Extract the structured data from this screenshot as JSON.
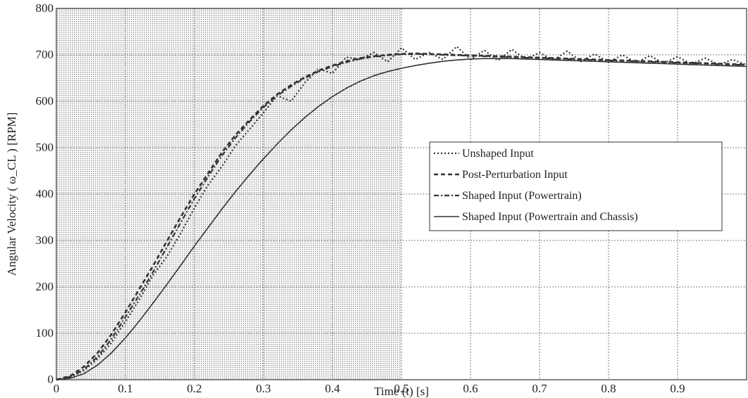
{
  "chart_data": {
    "type": "line",
    "xlabel": "Time (t) [s]",
    "ylabel": "Angular Velocity ( ω_CL ) [RPM]",
    "xlim": [
      0,
      1.0
    ],
    "ylim": [
      0,
      800
    ],
    "x_ticks": [
      "0",
      "0.1",
      "0.2",
      "0.3",
      "0.4",
      "0.5",
      "0.6",
      "0.7",
      "0.8",
      "0.9"
    ],
    "y_ticks": [
      "0",
      "100",
      "200",
      "300",
      "400",
      "500",
      "600",
      "700",
      "800"
    ],
    "grid": true,
    "shaded_region": [
      0,
      0.5
    ],
    "legend_position": "center-right",
    "series": [
      {
        "name": "Unshaped Input",
        "style": "dotted",
        "x": [
          0,
          0.02,
          0.04,
          0.06,
          0.08,
          0.1,
          0.12,
          0.14,
          0.16,
          0.18,
          0.2,
          0.22,
          0.24,
          0.26,
          0.28,
          0.3,
          0.32,
          0.34,
          0.36,
          0.38,
          0.4,
          0.42,
          0.44,
          0.46,
          0.48,
          0.5,
          0.52,
          0.54,
          0.56,
          0.58,
          0.6,
          0.62,
          0.64,
          0.66,
          0.68,
          0.7,
          0.72,
          0.74,
          0.76,
          0.78,
          0.8,
          0.82,
          0.84,
          0.86,
          0.88,
          0.9,
          0.92,
          0.94,
          0.96,
          0.98,
          1.0
        ],
        "values": [
          0,
          5,
          20,
          45,
          80,
          125,
          172,
          225,
          265,
          315,
          370,
          420,
          460,
          505,
          540,
          575,
          612,
          600,
          640,
          670,
          660,
          695,
          690,
          705,
          685,
          715,
          690,
          705,
          690,
          718,
          690,
          710,
          688,
          712,
          690,
          705,
          688,
          708,
          686,
          702,
          684,
          700,
          683,
          698,
          682,
          696,
          680,
          693,
          679,
          690,
          678
        ]
      },
      {
        "name": "Post-Perturbation Input",
        "style": "dashed",
        "x": [
          0,
          0.02,
          0.04,
          0.06,
          0.08,
          0.1,
          0.12,
          0.14,
          0.16,
          0.18,
          0.2,
          0.22,
          0.24,
          0.26,
          0.28,
          0.3,
          0.32,
          0.34,
          0.36,
          0.38,
          0.4,
          0.42,
          0.44,
          0.46,
          0.48,
          0.5,
          0.52,
          0.54,
          0.56,
          0.58,
          0.6,
          0.62,
          0.64,
          0.66,
          0.68,
          0.7,
          0.72,
          0.74,
          0.76,
          0.78,
          0.8,
          0.82,
          0.84,
          0.86,
          0.88,
          0.9,
          0.92,
          0.94,
          0.96,
          0.98,
          1.0
        ],
        "values": [
          0,
          8,
          28,
          58,
          98,
          145,
          195,
          245,
          298,
          350,
          400,
          445,
          490,
          528,
          560,
          590,
          615,
          635,
          652,
          666,
          677,
          686,
          693,
          697,
          700,
          702,
          703,
          702,
          701,
          700,
          699,
          698,
          697,
          696,
          695,
          694,
          693,
          692,
          691,
          690,
          689,
          688,
          687,
          686,
          685,
          684,
          683,
          682,
          681,
          680,
          679
        ]
      },
      {
        "name": "Shaped Input (Powertrain)",
        "style": "dashdot",
        "x": [
          0,
          0.02,
          0.04,
          0.06,
          0.08,
          0.1,
          0.12,
          0.14,
          0.16,
          0.18,
          0.2,
          0.22,
          0.24,
          0.26,
          0.28,
          0.3,
          0.32,
          0.34,
          0.36,
          0.38,
          0.4,
          0.42,
          0.44,
          0.46,
          0.48,
          0.5,
          0.52,
          0.54,
          0.56,
          0.58,
          0.6,
          0.62,
          0.64,
          0.66,
          0.68,
          0.7,
          0.72,
          0.74,
          0.76,
          0.78,
          0.8,
          0.82,
          0.84,
          0.86,
          0.88,
          0.9,
          0.92,
          0.94,
          0.96,
          0.98,
          1.0
        ],
        "values": [
          0,
          6,
          22,
          50,
          88,
          135,
          182,
          232,
          285,
          338,
          390,
          438,
          483,
          522,
          556,
          587,
          612,
          632,
          650,
          664,
          675,
          684,
          691,
          696,
          699,
          701,
          702,
          701,
          700,
          699,
          698,
          697,
          696,
          695,
          694,
          693,
          692,
          691,
          690,
          689,
          688,
          687,
          686,
          685,
          684,
          683,
          682,
          681,
          680,
          679,
          678
        ]
      },
      {
        "name": "Shaped Input (Powertrain and Chassis)",
        "style": "solid",
        "x": [
          0,
          0.02,
          0.04,
          0.06,
          0.08,
          0.1,
          0.12,
          0.14,
          0.16,
          0.18,
          0.2,
          0.22,
          0.24,
          0.26,
          0.28,
          0.3,
          0.32,
          0.34,
          0.36,
          0.38,
          0.4,
          0.42,
          0.44,
          0.46,
          0.48,
          0.5,
          0.52,
          0.54,
          0.56,
          0.58,
          0.6,
          0.62,
          0.64,
          0.66,
          0.68,
          0.7,
          0.72,
          0.74,
          0.76,
          0.78,
          0.8,
          0.82,
          0.84,
          0.86,
          0.88,
          0.9,
          0.92,
          0.94,
          0.96,
          0.98,
          1.0
        ],
        "values": [
          0,
          3,
          13,
          32,
          58,
          90,
          126,
          165,
          205,
          246,
          288,
          328,
          368,
          406,
          442,
          476,
          508,
          538,
          565,
          589,
          610,
          628,
          643,
          655,
          664,
          671,
          677,
          682,
          686,
          689,
          691,
          692,
          692,
          692,
          691,
          690,
          689,
          688,
          687,
          686,
          685,
          684,
          683,
          682,
          681,
          680,
          679,
          678,
          677,
          676,
          675
        ]
      }
    ]
  }
}
